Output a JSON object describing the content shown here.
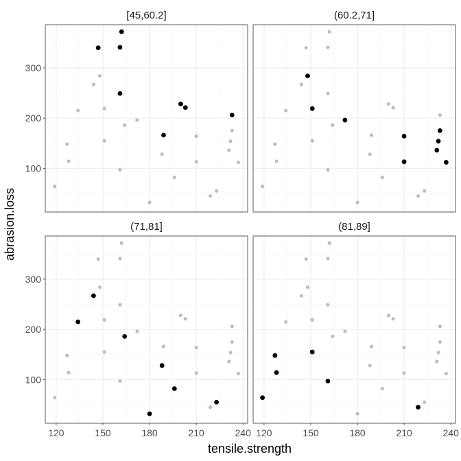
{
  "chart_data": {
    "type": "scatter",
    "xlabel": "tensile.strength",
    "ylabel": "abrasion.loss",
    "xlim": [
      113,
      243
    ],
    "ylim": [
      13,
      386
    ],
    "xticks": [
      120,
      150,
      180,
      210,
      240
    ],
    "yticks": [
      100,
      200,
      300
    ],
    "grid": true,
    "background_points": [
      [
        162,
        372
      ],
      [
        147,
        340
      ],
      [
        161,
        341
      ],
      [
        148,
        284
      ],
      [
        144,
        267
      ],
      [
        161,
        249
      ],
      [
        200,
        228
      ],
      [
        203,
        221
      ],
      [
        151,
        219
      ],
      [
        134,
        215
      ],
      [
        233,
        206
      ],
      [
        172,
        196
      ],
      [
        164,
        186
      ],
      [
        233,
        175
      ],
      [
        189,
        166
      ],
      [
        210,
        164
      ],
      [
        232,
        154
      ],
      [
        151,
        155
      ],
      [
        127,
        148
      ],
      [
        188,
        128
      ],
      [
        231,
        136
      ],
      [
        210,
        113
      ],
      [
        128,
        114
      ],
      [
        237,
        112
      ],
      [
        161,
        97
      ],
      [
        196,
        82
      ],
      [
        119,
        64
      ],
      [
        223,
        55
      ],
      [
        219,
        45
      ],
      [
        180,
        32
      ]
    ],
    "panels": [
      {
        "label": "[45,60.2]",
        "points": [
          [
            162,
            372
          ],
          [
            147,
            340
          ],
          [
            161,
            341
          ],
          [
            161,
            249
          ],
          [
            200,
            228
          ],
          [
            203,
            221
          ],
          [
            233,
            206
          ],
          [
            189,
            166
          ]
        ]
      },
      {
        "label": "(60.2,71]",
        "points": [
          [
            148,
            284
          ],
          [
            151,
            219
          ],
          [
            172,
            196
          ],
          [
            233,
            175
          ],
          [
            210,
            164
          ],
          [
            232,
            154
          ],
          [
            231,
            136
          ],
          [
            210,
            113
          ],
          [
            237,
            112
          ]
        ]
      },
      {
        "label": "(71,81]",
        "points": [
          [
            144,
            267
          ],
          [
            134,
            215
          ],
          [
            164,
            186
          ],
          [
            188,
            128
          ],
          [
            196,
            82
          ],
          [
            223,
            55
          ],
          [
            180,
            32
          ]
        ]
      },
      {
        "label": "(81,89]",
        "points": [
          [
            151,
            155
          ],
          [
            127,
            148
          ],
          [
            128,
            114
          ],
          [
            161,
            97
          ],
          [
            119,
            64
          ],
          [
            219,
            45
          ]
        ]
      }
    ]
  },
  "colors": {
    "highlight": "#000000",
    "background": "#bebebe"
  }
}
